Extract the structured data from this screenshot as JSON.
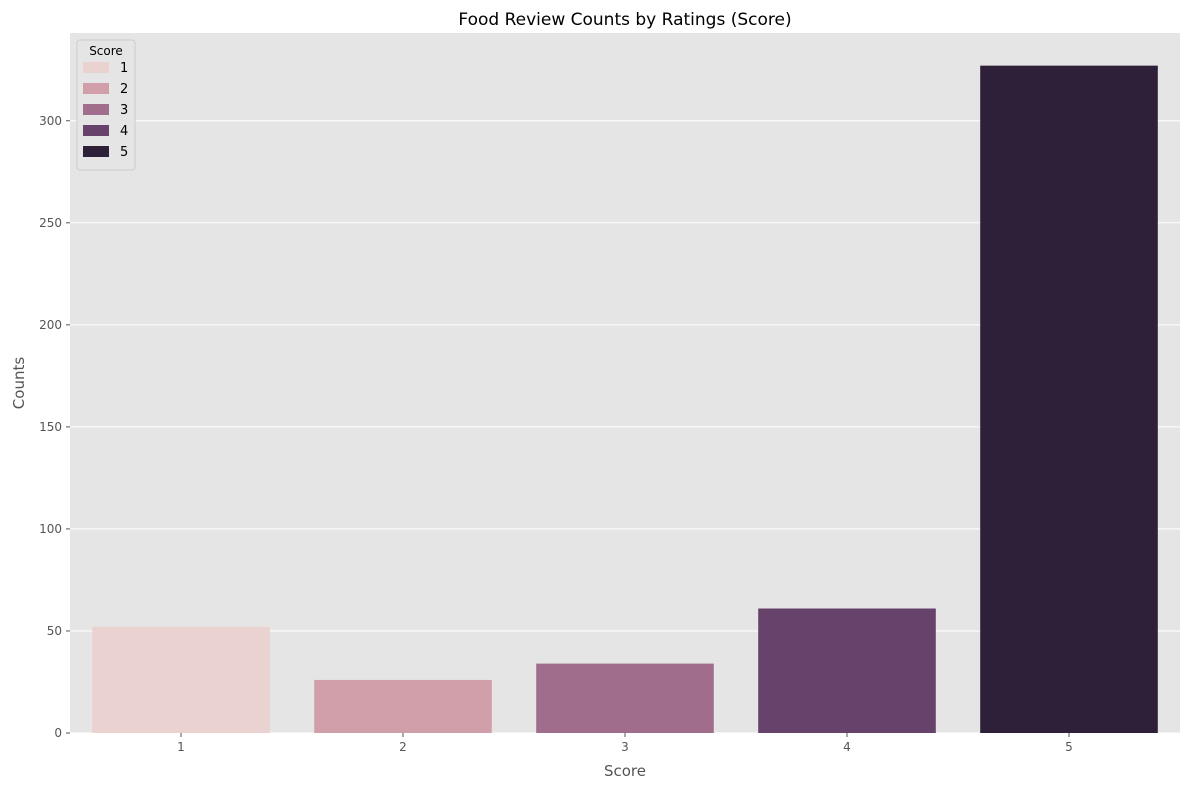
{
  "chart_data": {
    "type": "bar",
    "title": "Food Review Counts by Ratings (Score)",
    "xlabel": "Score",
    "ylabel": "Counts",
    "categories": [
      "1",
      "2",
      "3",
      "4",
      "5"
    ],
    "values": [
      52,
      26,
      34,
      61,
      327
    ],
    "colors": [
      "#ead2d0",
      "#d09fa9",
      "#a16d8c",
      "#67436c",
      "#2e2038"
    ],
    "ylim": [
      0,
      343
    ],
    "yticks": [
      0,
      50,
      100,
      150,
      200,
      250,
      300
    ],
    "grid": true,
    "background": "#e5e5e5",
    "legend": {
      "title": "Score",
      "placement": "top-left",
      "entries": [
        "1",
        "2",
        "3",
        "4",
        "5"
      ]
    }
  }
}
